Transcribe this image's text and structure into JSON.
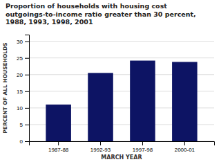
{
  "chart_data": {
    "type": "bar",
    "title": "Proportion of households with housing cost\noutgoings-to-income ratio greater than 30 percent,\n1988, 1993, 1998, 2001",
    "categories": [
      "1987-88",
      "1992-93",
      "1997-98",
      "2000-01"
    ],
    "values": [
      11.0,
      20.5,
      24.2,
      23.8
    ],
    "color": "#0d1464",
    "xlabel": "MARCH YEAR",
    "ylabel": "PERCENT OF ALL HOUSEHOLDS",
    "ylim": [
      0,
      32
    ],
    "yticks": [
      0,
      5,
      10,
      15,
      20,
      25,
      30
    ],
    "grid": true
  }
}
